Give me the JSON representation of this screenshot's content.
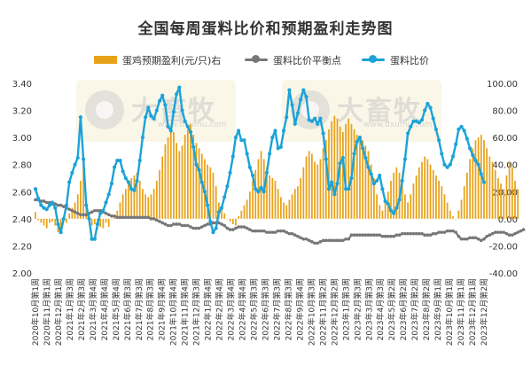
{
  "chart_data": {
    "type": "bar+line",
    "title": "全国每周蛋料比价和预期盈利走势图",
    "left_axis": {
      "min": 2.0,
      "max": 3.4,
      "ticks": [
        "2.00",
        "2.20",
        "2.40",
        "2.60",
        "2.80",
        "3.00",
        "3.20",
        "3.40"
      ]
    },
    "right_axis": {
      "min": -40,
      "max": 100,
      "ticks": [
        "-40.00",
        "-20.00",
        "0.00",
        "20.00",
        "40.00",
        "60.00",
        "80.00",
        "100.00"
      ]
    },
    "grid": false,
    "legend_position": "top",
    "x_labels": [
      "2020年10月第1周",
      "2020年11月第1周",
      "2020年12月第1周",
      "2021年1月第3周",
      "2021年2月第3周",
      "2021年3月第4周",
      "2021年4月第4周",
      "2021年5月第4周",
      "2021年6月第3周",
      "2021年7月第3周",
      "2021年8月第3周",
      "2021年9月第4周",
      "2021年10月第4周",
      "2021年11月第4周",
      "2021年12月第3周",
      "2022年1月第4周",
      "2022年2月第4周",
      "2022年3月第4周",
      "2022年4月第4周",
      "2022年5月第3周",
      "2022年6月第3周",
      "2022年7月第3周",
      "2022年8月第3周",
      "2022年9月第4周",
      "2022年10月第3周",
      "2022年11月第2周",
      "2022年12月第2周",
      "2023年1月第3周",
      "2023年2月第3周",
      "2023年3月第3周",
      "2023年4月第3周",
      "2023年5月第2周",
      "2023年6月第2周",
      "2023年7月第2周",
      "2023年8月第2周",
      "2023年9月第1周",
      "2023年10月第1周",
      "2023年11月第1周",
      "2023年12月第1周",
      "2023年12月第2周"
    ],
    "series": [
      {
        "name": "蛋鸡预期盈利(元/只)右",
        "type": "bar",
        "axis": "right",
        "color": "#E8A21A",
        "values": [
          5,
          -1,
          -3,
          -5,
          -7,
          -3,
          -2,
          -5,
          -10,
          -8,
          -2,
          -3,
          4,
          8,
          12,
          18,
          28,
          44,
          12,
          4,
          -5,
          -4,
          -8,
          -6,
          -7,
          -3,
          -6,
          0,
          2,
          6,
          12,
          18,
          22,
          26,
          30,
          32,
          34,
          28,
          22,
          18,
          16,
          18,
          22,
          28,
          36,
          46,
          55,
          60,
          68,
          64,
          56,
          50,
          54,
          62,
          66,
          70,
          62,
          56,
          52,
          48,
          44,
          40,
          38,
          34,
          24,
          12,
          8,
          4,
          0,
          -2,
          -4,
          -5,
          2,
          6,
          10,
          14,
          20,
          28,
          36,
          44,
          50,
          44,
          38,
          32,
          30,
          28,
          22,
          16,
          12,
          10,
          14,
          18,
          22,
          24,
          30,
          38,
          46,
          50,
          48,
          42,
          40,
          44,
          52,
          58,
          66,
          72,
          76,
          74,
          68,
          64,
          70,
          74,
          70,
          66,
          62,
          60,
          58,
          54,
          50,
          40,
          30,
          18,
          10,
          6,
          12,
          20,
          28,
          34,
          38,
          34,
          26,
          18,
          12,
          18,
          26,
          32,
          38,
          42,
          46,
          44,
          40,
          36,
          32,
          28,
          24,
          18,
          12,
          6,
          2,
          0,
          6,
          14,
          24,
          34,
          44,
          52,
          58,
          60,
          62,
          58,
          52,
          46,
          42,
          36,
          30,
          26,
          22,
          32,
          42,
          38,
          28,
          22
        ]
      },
      {
        "name": "蛋料比价平衡点",
        "type": "line",
        "axis": "left",
        "color": "#777777",
        "values": [
          2.54,
          2.54,
          2.53,
          2.53,
          2.52,
          2.52,
          2.51,
          2.51,
          2.5,
          2.5,
          2.49,
          2.48,
          2.47,
          2.46,
          2.45,
          2.44,
          2.43,
          2.43,
          2.43,
          2.44,
          2.45,
          2.46,
          2.46,
          2.46,
          2.45,
          2.44,
          2.43,
          2.42,
          2.42,
          2.41,
          2.41,
          2.41,
          2.41,
          2.41,
          2.41,
          2.41,
          2.41,
          2.41,
          2.41,
          2.41,
          2.41,
          2.4,
          2.4,
          2.39,
          2.38,
          2.37,
          2.36,
          2.35,
          2.35,
          2.36,
          2.36,
          2.36,
          2.35,
          2.35,
          2.35,
          2.34,
          2.33,
          2.33,
          2.33,
          2.34,
          2.35,
          2.36,
          2.36,
          2.37,
          2.37,
          2.37,
          2.36,
          2.35,
          2.33,
          2.32,
          2.32,
          2.33,
          2.34,
          2.34,
          2.34,
          2.33,
          2.32,
          2.31,
          2.31,
          2.31,
          2.31,
          2.31,
          2.3,
          2.3,
          2.3,
          2.3,
          2.31,
          2.31,
          2.31,
          2.3,
          2.29,
          2.29,
          2.28,
          2.27,
          2.26,
          2.25,
          2.25,
          2.24,
          2.23,
          2.22,
          2.22,
          2.23,
          2.24,
          2.24,
          2.24,
          2.24,
          2.24,
          2.24,
          2.24,
          2.24,
          2.25,
          2.25,
          2.28,
          2.28,
          2.28,
          2.28,
          2.28,
          2.28,
          2.28,
          2.28,
          2.28,
          2.28,
          2.28,
          2.27,
          2.27,
          2.27,
          2.27,
          2.27,
          2.28,
          2.28,
          2.29,
          2.29,
          2.29,
          2.29,
          2.29,
          2.29,
          2.29,
          2.29,
          2.28,
          2.28,
          2.28,
          2.29,
          2.29,
          2.3,
          2.3,
          2.3,
          2.31,
          2.31,
          2.31,
          2.3,
          2.27,
          2.25,
          2.25,
          2.25,
          2.26,
          2.26,
          2.26,
          2.25,
          2.24,
          2.25,
          2.27,
          2.28,
          2.29,
          2.3,
          2.3,
          2.3,
          2.3,
          2.29,
          2.28,
          2.28,
          2.29,
          2.3,
          2.31,
          2.32
        ]
      },
      {
        "name": "蛋料比价",
        "type": "line",
        "axis": "left",
        "color": "#1BA3D8",
        "values": [
          2.62,
          2.55,
          2.5,
          2.48,
          2.47,
          2.5,
          2.52,
          2.48,
          2.36,
          2.3,
          2.4,
          2.5,
          2.67,
          2.74,
          2.8,
          2.85,
          3.15,
          2.84,
          2.5,
          2.4,
          2.25,
          2.25,
          2.36,
          2.44,
          2.46,
          2.52,
          2.58,
          2.66,
          2.78,
          2.83,
          2.83,
          2.75,
          2.7,
          2.67,
          2.62,
          2.61,
          2.68,
          2.83,
          3.0,
          3.15,
          3.22,
          3.16,
          3.14,
          3.2,
          3.27,
          3.31,
          3.24,
          3.08,
          3.05,
          3.19,
          3.32,
          3.37,
          3.2,
          3.12,
          3.08,
          3.04,
          2.93,
          2.8,
          2.76,
          2.67,
          2.6,
          2.5,
          2.38,
          2.3,
          2.33,
          2.45,
          2.48,
          2.56,
          2.64,
          2.74,
          2.86,
          3.0,
          3.05,
          2.98,
          2.98,
          2.88,
          2.78,
          2.72,
          2.62,
          2.6,
          2.63,
          2.6,
          2.74,
          2.88,
          3.0,
          3.05,
          2.92,
          2.93,
          3.05,
          3.15,
          3.35,
          3.24,
          3.1,
          3.18,
          3.28,
          3.35,
          3.3,
          3.13,
          3.12,
          3.14,
          3.1,
          3.14,
          3.03,
          2.84,
          2.62,
          2.67,
          2.58,
          2.66,
          2.81,
          2.85,
          2.62,
          2.62,
          2.7,
          2.88,
          2.97,
          3.0,
          2.92,
          2.85,
          2.78,
          2.73,
          2.66,
          2.68,
          2.72,
          2.62,
          2.53,
          2.51,
          2.46,
          2.44,
          2.48,
          2.54,
          2.68,
          2.84,
          3.03,
          3.08,
          3.12,
          3.12,
          3.11,
          3.13,
          3.2,
          3.25,
          3.22,
          3.14,
          3.06,
          2.98,
          2.88,
          2.8,
          2.78,
          2.8,
          2.86,
          2.95,
          3.06,
          3.08,
          3.05,
          2.99,
          2.92,
          2.87,
          2.83,
          2.8,
          2.73,
          2.67
        ]
      }
    ]
  },
  "watermark": {
    "brand": "大畜牧",
    "url": "www.dxumu.com"
  }
}
